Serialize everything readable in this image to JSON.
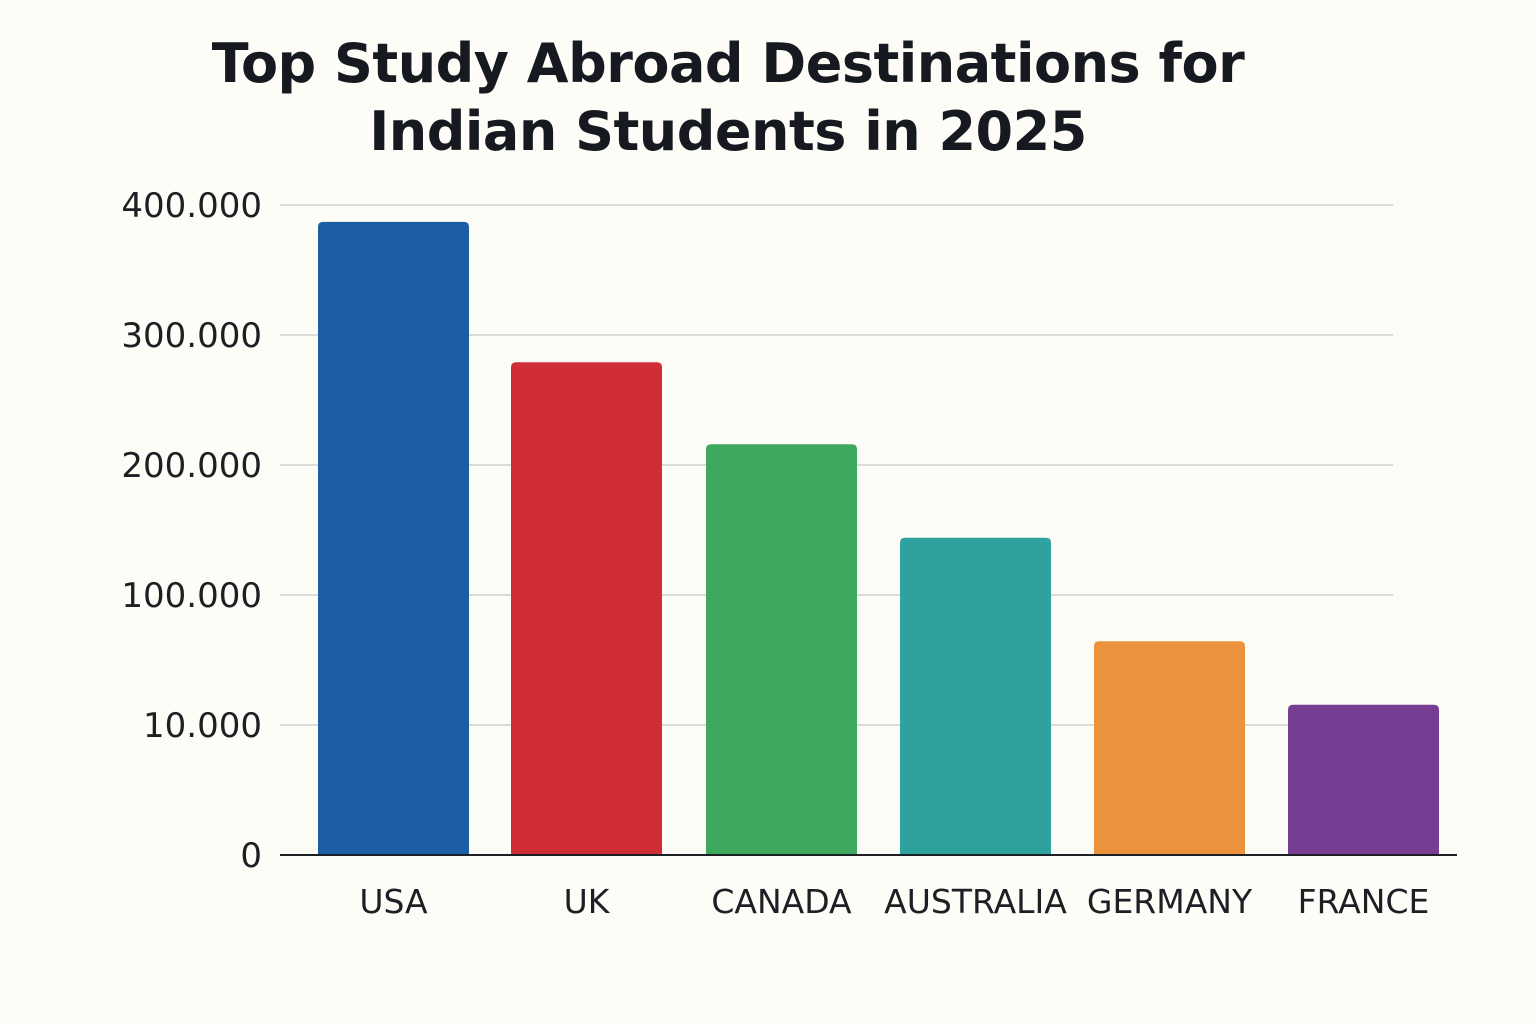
{
  "chart_data": {
    "type": "bar",
    "title": "Top Study Abroad Destinations for Indian Students in 2025",
    "title_lines": [
      "Top Study Abroad Destinations for",
      "Indian Students in 2025"
    ],
    "xlabel": "",
    "ylabel": "",
    "categories": [
      "USA",
      "UK",
      "CANADA",
      "AUSTRALIA",
      "GERMANY",
      "FRANCE"
    ],
    "values": [
      387000,
      279000,
      216000,
      144000,
      68000,
      24000
    ],
    "colors": [
      "#1b5ea4",
      "#cf2e36",
      "#3ea95d",
      "#2ea29c",
      "#eb933c",
      "#763d92"
    ],
    "y_ticks": [
      {
        "value": 0,
        "label": "0"
      },
      {
        "value": 10000,
        "label": "10.000"
      },
      {
        "value": 100000,
        "label": "100.000"
      },
      {
        "value": 200000,
        "label": "200.000"
      },
      {
        "value": 300000,
        "label": "300.000"
      },
      {
        "value": 400000,
        "label": "400.000"
      }
    ],
    "ylim": [
      0,
      400000
    ],
    "grid": true,
    "legend": "none"
  }
}
